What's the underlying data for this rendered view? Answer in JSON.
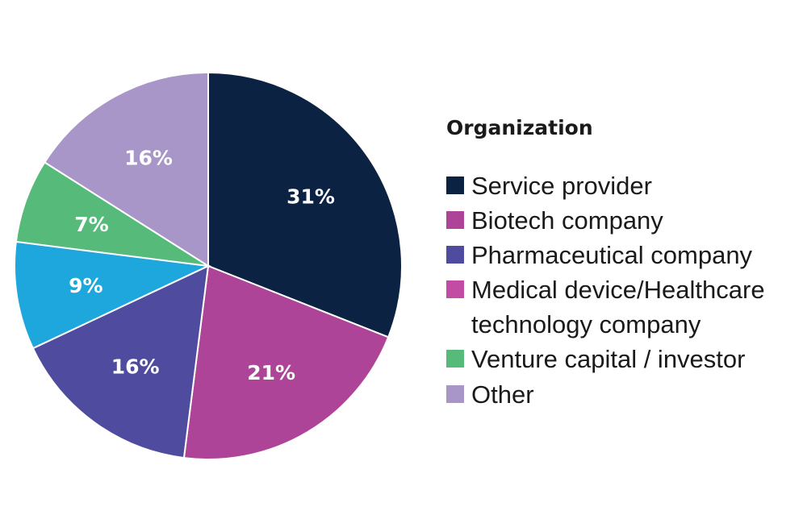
{
  "chart_data": {
    "type": "pie",
    "title": "",
    "legend_title": "Organization",
    "legend_position": "right",
    "start": "top, clockwise",
    "slices": [
      {
        "label": "Service provider",
        "value": 31,
        "display": "31%",
        "color": "#0c2242"
      },
      {
        "label": "Biotech company",
        "value": 21,
        "display": "21%",
        "color": "#ae4497"
      },
      {
        "label": "Pharmaceutical company",
        "value": 16,
        "display": "16%",
        "color": "#4f4c9f"
      },
      {
        "label": "Medical device/Healthcare technology company",
        "value": 0,
        "display": "",
        "color": "#c24ca4"
      },
      {
        "label": "Venture capital / investor",
        "value": 7,
        "display": "7%",
        "color": "#56ba7b"
      },
      {
        "label": "Other",
        "value": 16,
        "display": "16%",
        "color": "#a896c9"
      }
    ],
    "unlabeled_slice": {
      "value": 9,
      "display": "9%",
      "color": "#1ea7dc"
    },
    "slice_order": [
      0,
      1,
      2,
      "unlabeled",
      4,
      5
    ]
  }
}
